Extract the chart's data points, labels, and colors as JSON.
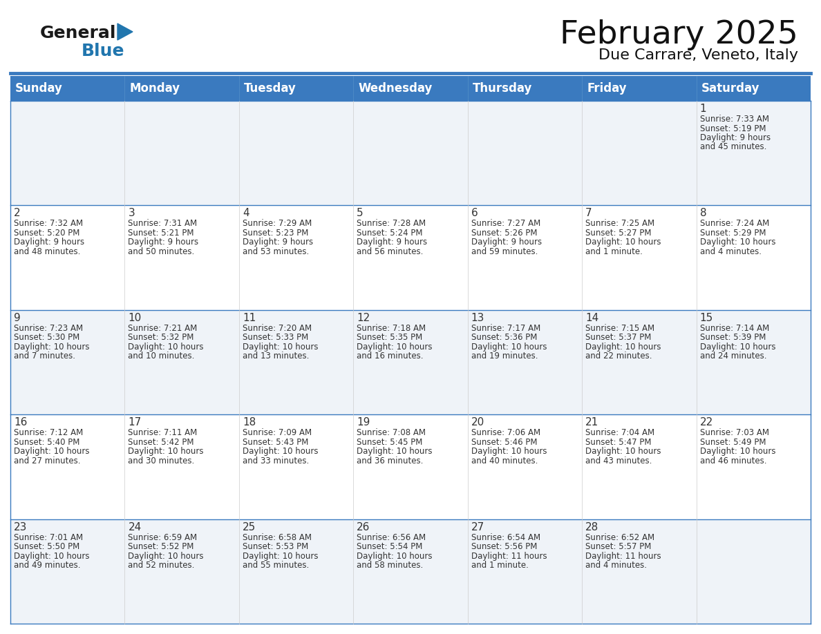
{
  "title": "February 2025",
  "subtitle": "Due Carrare, Veneto, Italy",
  "header_color": "#3a7abf",
  "header_text_color": "#ffffff",
  "border_color": "#3a7abf",
  "cell_bg_odd": "#eff3f8",
  "cell_bg_even": "#ffffff",
  "text_color": "#333333",
  "day_headers": [
    "Sunday",
    "Monday",
    "Tuesday",
    "Wednesday",
    "Thursday",
    "Friday",
    "Saturday"
  ],
  "title_fontsize": 34,
  "subtitle_fontsize": 16,
  "header_fontsize": 12,
  "day_num_fontsize": 11,
  "cell_fontsize": 8.5,
  "logo_color_general": "#1a1a1a",
  "logo_color_blue": "#2176ae",
  "calendar_data": [
    [
      null,
      null,
      null,
      null,
      null,
      null,
      {
        "day": 1,
        "sunrise": "7:33 AM",
        "sunset": "5:19 PM",
        "daylight": "9 hours",
        "daylight2": "and 45 minutes."
      }
    ],
    [
      {
        "day": 2,
        "sunrise": "7:32 AM",
        "sunset": "5:20 PM",
        "daylight": "9 hours",
        "daylight2": "and 48 minutes."
      },
      {
        "day": 3,
        "sunrise": "7:31 AM",
        "sunset": "5:21 PM",
        "daylight": "9 hours",
        "daylight2": "and 50 minutes."
      },
      {
        "day": 4,
        "sunrise": "7:29 AM",
        "sunset": "5:23 PM",
        "daylight": "9 hours",
        "daylight2": "and 53 minutes."
      },
      {
        "day": 5,
        "sunrise": "7:28 AM",
        "sunset": "5:24 PM",
        "daylight": "9 hours",
        "daylight2": "and 56 minutes."
      },
      {
        "day": 6,
        "sunrise": "7:27 AM",
        "sunset": "5:26 PM",
        "daylight": "9 hours",
        "daylight2": "and 59 minutes."
      },
      {
        "day": 7,
        "sunrise": "7:25 AM",
        "sunset": "5:27 PM",
        "daylight": "10 hours",
        "daylight2": "and 1 minute."
      },
      {
        "day": 8,
        "sunrise": "7:24 AM",
        "sunset": "5:29 PM",
        "daylight": "10 hours",
        "daylight2": "and 4 minutes."
      }
    ],
    [
      {
        "day": 9,
        "sunrise": "7:23 AM",
        "sunset": "5:30 PM",
        "daylight": "10 hours",
        "daylight2": "and 7 minutes."
      },
      {
        "day": 10,
        "sunrise": "7:21 AM",
        "sunset": "5:32 PM",
        "daylight": "10 hours",
        "daylight2": "and 10 minutes."
      },
      {
        "day": 11,
        "sunrise": "7:20 AM",
        "sunset": "5:33 PM",
        "daylight": "10 hours",
        "daylight2": "and 13 minutes."
      },
      {
        "day": 12,
        "sunrise": "7:18 AM",
        "sunset": "5:35 PM",
        "daylight": "10 hours",
        "daylight2": "and 16 minutes."
      },
      {
        "day": 13,
        "sunrise": "7:17 AM",
        "sunset": "5:36 PM",
        "daylight": "10 hours",
        "daylight2": "and 19 minutes."
      },
      {
        "day": 14,
        "sunrise": "7:15 AM",
        "sunset": "5:37 PM",
        "daylight": "10 hours",
        "daylight2": "and 22 minutes."
      },
      {
        "day": 15,
        "sunrise": "7:14 AM",
        "sunset": "5:39 PM",
        "daylight": "10 hours",
        "daylight2": "and 24 minutes."
      }
    ],
    [
      {
        "day": 16,
        "sunrise": "7:12 AM",
        "sunset": "5:40 PM",
        "daylight": "10 hours",
        "daylight2": "and 27 minutes."
      },
      {
        "day": 17,
        "sunrise": "7:11 AM",
        "sunset": "5:42 PM",
        "daylight": "10 hours",
        "daylight2": "and 30 minutes."
      },
      {
        "day": 18,
        "sunrise": "7:09 AM",
        "sunset": "5:43 PM",
        "daylight": "10 hours",
        "daylight2": "and 33 minutes."
      },
      {
        "day": 19,
        "sunrise": "7:08 AM",
        "sunset": "5:45 PM",
        "daylight": "10 hours",
        "daylight2": "and 36 minutes."
      },
      {
        "day": 20,
        "sunrise": "7:06 AM",
        "sunset": "5:46 PM",
        "daylight": "10 hours",
        "daylight2": "and 40 minutes."
      },
      {
        "day": 21,
        "sunrise": "7:04 AM",
        "sunset": "5:47 PM",
        "daylight": "10 hours",
        "daylight2": "and 43 minutes."
      },
      {
        "day": 22,
        "sunrise": "7:03 AM",
        "sunset": "5:49 PM",
        "daylight": "10 hours",
        "daylight2": "and 46 minutes."
      }
    ],
    [
      {
        "day": 23,
        "sunrise": "7:01 AM",
        "sunset": "5:50 PM",
        "daylight": "10 hours",
        "daylight2": "and 49 minutes."
      },
      {
        "day": 24,
        "sunrise": "6:59 AM",
        "sunset": "5:52 PM",
        "daylight": "10 hours",
        "daylight2": "and 52 minutes."
      },
      {
        "day": 25,
        "sunrise": "6:58 AM",
        "sunset": "5:53 PM",
        "daylight": "10 hours",
        "daylight2": "and 55 minutes."
      },
      {
        "day": 26,
        "sunrise": "6:56 AM",
        "sunset": "5:54 PM",
        "daylight": "10 hours",
        "daylight2": "and 58 minutes."
      },
      {
        "day": 27,
        "sunrise": "6:54 AM",
        "sunset": "5:56 PM",
        "daylight": "11 hours",
        "daylight2": "and 1 minute."
      },
      {
        "day": 28,
        "sunrise": "6:52 AM",
        "sunset": "5:57 PM",
        "daylight": "11 hours",
        "daylight2": "and 4 minutes."
      },
      null
    ]
  ]
}
